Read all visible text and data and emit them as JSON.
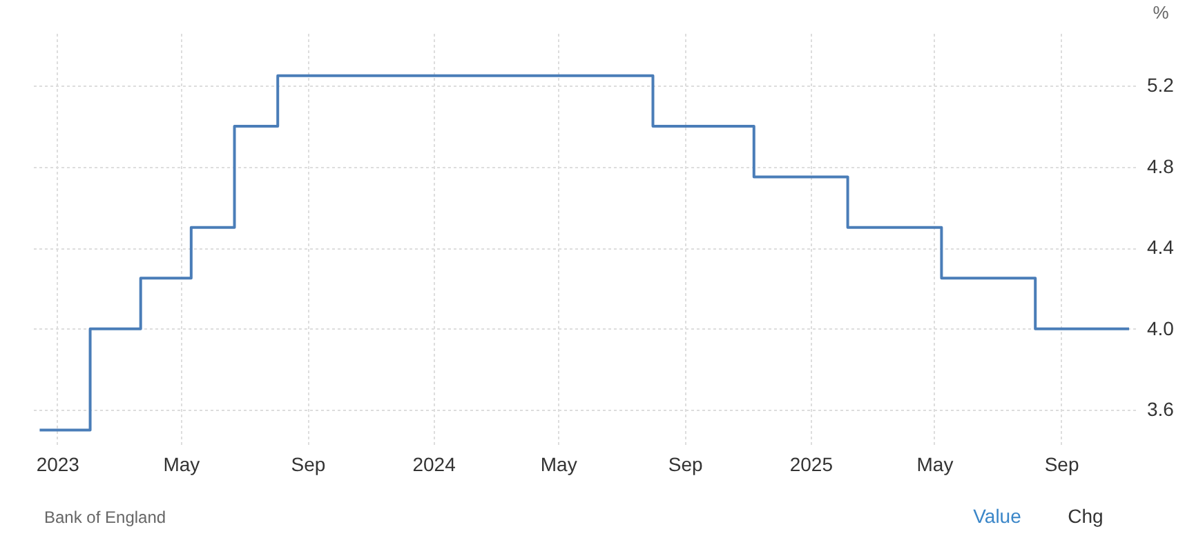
{
  "chart_data": {
    "type": "step",
    "ylabel": "%",
    "x": [
      "2022-12-15",
      "2023-02-02",
      "2023-03-23",
      "2023-05-11",
      "2023-06-22",
      "2023-08-03",
      "2024-08-01",
      "2024-11-07",
      "2025-02-06",
      "2025-05-08",
      "2025-08-07",
      "2025-11-06"
    ],
    "series": [
      {
        "color": "#4a7db8",
        "values": [
          3.5,
          4.0,
          4.25,
          4.5,
          5.0,
          5.25,
          5.0,
          4.75,
          4.5,
          4.25,
          4.0,
          4.0
        ]
      }
    ],
    "xlim": [
      "2022-12-06",
      "2025-11-12"
    ],
    "xticks": [
      {
        "value": "2023-01-01",
        "label": "2023"
      },
      {
        "value": "2023-05-01",
        "label": "May"
      },
      {
        "value": "2023-09-01",
        "label": "Sep"
      },
      {
        "value": "2024-01-01",
        "label": "2024"
      },
      {
        "value": "2024-05-01",
        "label": "May"
      },
      {
        "value": "2024-09-01",
        "label": "Sep"
      },
      {
        "value": "2025-01-01",
        "label": "2025"
      },
      {
        "value": "2025-05-01",
        "label": "May"
      },
      {
        "value": "2025-09-01",
        "label": "Sep"
      }
    ],
    "ylim": [
      3.43,
      5.46
    ],
    "yticks": [
      3.6,
      {
        "value": 4.0,
        "label": "4.0"
      },
      4.4,
      4.8,
      5.2
    ],
    "grid": true,
    "marker": "none",
    "line_style": "solid",
    "annotations": [
      "Bank of England",
      "Value",
      "Chg"
    ]
  }
}
